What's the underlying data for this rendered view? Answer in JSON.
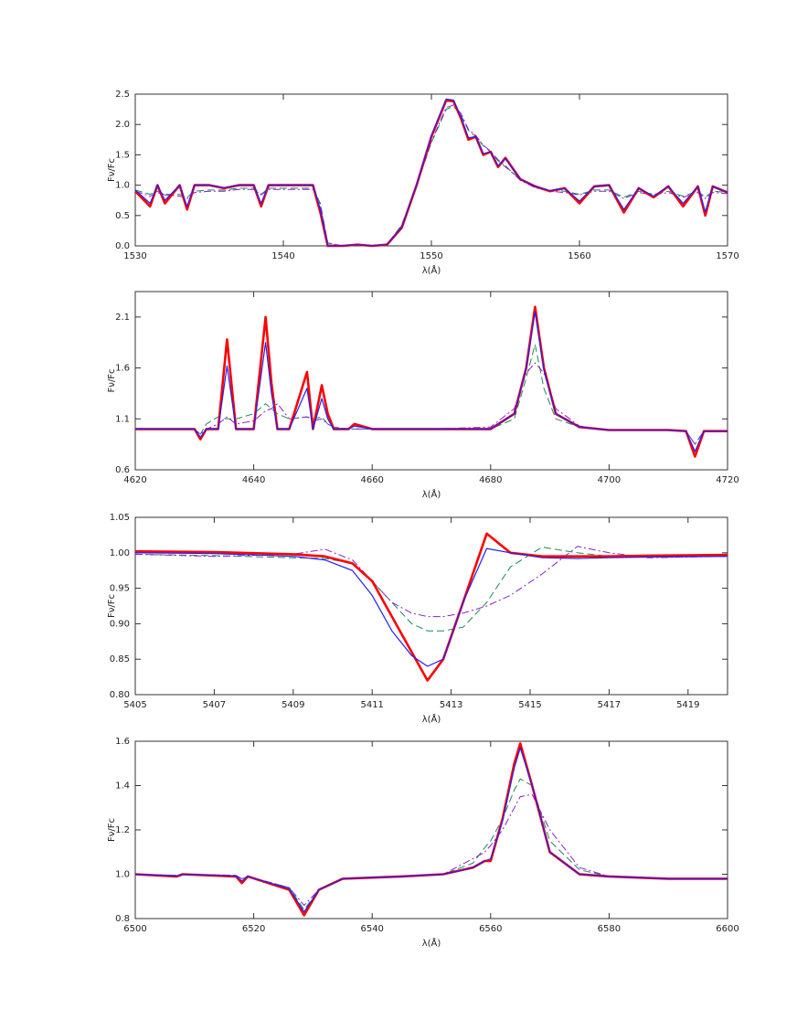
{
  "chart_data": [
    {
      "type": "line",
      "x_label": "λ(Å)",
      "y_label": "Fν/Fc",
      "xlim": [
        1530,
        1570
      ],
      "xticks": [
        1530,
        1540,
        1550,
        1560,
        1570
      ],
      "ylim": [
        0,
        2.5
      ],
      "yticks": [
        {
          "value": 0,
          "label": "0.0"
        },
        0.5,
        {
          "value": 1,
          "label": "1.0"
        },
        1.5,
        {
          "value": 2,
          "label": "2.0"
        },
        2.5
      ],
      "x": [
        1530,
        1531,
        1531.5,
        1532,
        1533,
        1533.5,
        1534,
        1535,
        1536,
        1537,
        1538,
        1538.5,
        1539,
        1540,
        1541,
        1542,
        1542.5,
        1543,
        1544,
        1545,
        1546,
        1547,
        1548,
        1549,
        1550,
        1551,
        1551.5,
        1552,
        1552.5,
        1553,
        1553.5,
        1554,
        1554.5,
        1555,
        1556,
        1557,
        1558,
        1559,
        1560,
        1561,
        1562,
        1563,
        1564,
        1565,
        1566,
        1567,
        1568,
        1568.5,
        1569,
        1570
      ],
      "series": [
        {
          "color": "#1a8a5a",
          "linestyle": "dashed",
          "width": 1,
          "values": [
            0.92,
            0.85,
            0.9,
            0.85,
            0.85,
            0.8,
            0.9,
            0.92,
            0.92,
            0.95,
            0.95,
            0.85,
            0.95,
            0.95,
            0.95,
            0.95,
            0.7,
            0.05,
            0,
            0.02,
            0,
            0.02,
            0.35,
            1,
            1.7,
            2.25,
            2.3,
            2.15,
            1.9,
            1.8,
            1.65,
            1.55,
            1.4,
            1.3,
            1.1,
            0.98,
            0.92,
            0.9,
            0.85,
            0.92,
            0.92,
            0.8,
            0.9,
            0.85,
            0.9,
            0.82,
            0.9,
            0.8,
            0.9,
            0.88
          ]
        },
        {
          "color": "#8a1fd0",
          "linestyle": "dashdot",
          "width": 1,
          "values": [
            0.9,
            0.82,
            0.88,
            0.84,
            0.82,
            0.78,
            0.88,
            0.9,
            0.9,
            0.93,
            0.93,
            0.84,
            0.93,
            0.93,
            0.93,
            0.93,
            0.68,
            0.04,
            0,
            0.02,
            0,
            0.02,
            0.33,
            0.98,
            1.72,
            2.28,
            2.32,
            2.18,
            1.92,
            1.82,
            1.66,
            1.56,
            1.42,
            1.32,
            1.08,
            0.96,
            0.9,
            0.88,
            0.84,
            0.9,
            0.9,
            0.78,
            0.88,
            0.84,
            0.88,
            0.8,
            0.88,
            0.78,
            0.88,
            0.86
          ]
        },
        {
          "color": "#ff0000",
          "linestyle": "solid",
          "width": 2.6,
          "values": [
            0.9,
            0.65,
            1,
            0.7,
            1,
            0.6,
            1,
            1,
            0.95,
            1,
            1,
            0.65,
            1,
            1,
            1,
            1,
            0.55,
            0,
            0,
            0.02,
            0,
            0.02,
            0.3,
            1,
            1.8,
            2.4,
            2.38,
            2.1,
            1.75,
            1.8,
            1.5,
            1.55,
            1.3,
            1.45,
            1.1,
            0.98,
            0.9,
            0.95,
            0.7,
            0.98,
            1,
            0.55,
            0.95,
            0.8,
            0.98,
            0.65,
            0.98,
            0.5,
            0.98,
            0.88
          ]
        },
        {
          "color": "#2020ff",
          "linestyle": "solid",
          "width": 1.2,
          "values": [
            0.92,
            0.7,
            1,
            0.75,
            1,
            0.65,
            1,
            1,
            0.96,
            1,
            1,
            0.7,
            1,
            1,
            1,
            1,
            0.6,
            0,
            0,
            0.02,
            0,
            0.02,
            0.31,
            1,
            1.82,
            2.42,
            2.4,
            2.12,
            1.78,
            1.8,
            1.52,
            1.55,
            1.32,
            1.44,
            1.1,
            0.98,
            0.91,
            0.95,
            0.74,
            0.98,
            1,
            0.6,
            0.95,
            0.82,
            0.98,
            0.7,
            0.98,
            0.56,
            0.98,
            0.88
          ]
        }
      ]
    },
    {
      "type": "line",
      "x_label": "λ(Å)",
      "y_label": "Fν/Fc",
      "xlim": [
        4620,
        4720
      ],
      "xticks": [
        4620,
        4640,
        4660,
        4680,
        4700,
        4720
      ],
      "ylim": [
        0.6,
        2.35
      ],
      "yticks": [
        0.6,
        1.1,
        1.6,
        2.1
      ],
      "x": [
        4620,
        4630,
        4631,
        4632,
        4634,
        4635.5,
        4637,
        4640,
        4642,
        4643,
        4644,
        4646,
        4649,
        4650,
        4651.5,
        4652.5,
        4653.5,
        4656,
        4657,
        4660,
        4670,
        4680,
        4684,
        4686,
        4687.5,
        4689,
        4691,
        4695,
        4700,
        4710,
        4713,
        4714.5,
        4716,
        4720
      ],
      "series": [
        {
          "color": "#1a8a5a",
          "linestyle": "dashed",
          "width": 1,
          "values": [
            1,
            1,
            0.95,
            1.05,
            1.12,
            1.1,
            1.1,
            1.15,
            1.25,
            1.2,
            1.15,
            1.1,
            1.12,
            1.1,
            1.12,
            1.05,
            1.02,
            1,
            1,
            1,
            1,
            1,
            1.1,
            1.5,
            1.83,
            1.4,
            1.1,
            1.02,
            0.99,
            0.99,
            0.98,
            0.85,
            0.98,
            0.98
          ]
        },
        {
          "color": "#8a1fd0",
          "linestyle": "dashdot",
          "width": 1,
          "values": [
            1,
            1,
            0.95,
            1,
            1.05,
            1.12,
            1.05,
            1.08,
            1.18,
            1.2,
            1.25,
            1.1,
            1.12,
            1.08,
            1.1,
            1.05,
            1.02,
            1,
            1,
            1,
            1,
            1.02,
            1.2,
            1.55,
            1.65,
            1.55,
            1.2,
            1.03,
            0.99,
            0.99,
            0.98,
            0.85,
            0.98,
            0.98
          ]
        },
        {
          "color": "#ff0000",
          "linestyle": "solid",
          "width": 2.6,
          "values": [
            1,
            1,
            0.9,
            1,
            1,
            1.88,
            1,
            1,
            2.1,
            1.45,
            1,
            1,
            1.56,
            1,
            1.43,
            1.15,
            1,
            1,
            1.05,
            1,
            1,
            1,
            1.15,
            1.6,
            2.2,
            1.6,
            1.15,
            1.02,
            0.99,
            0.99,
            0.98,
            0.73,
            0.98,
            0.98
          ]
        },
        {
          "color": "#2020ff",
          "linestyle": "solid",
          "width": 1.2,
          "values": [
            1,
            1,
            0.92,
            1,
            1,
            1.62,
            1,
            1,
            1.85,
            1.35,
            1,
            1,
            1.4,
            1,
            1.3,
            1.1,
            1,
            1,
            1.03,
            1,
            1,
            1,
            1.15,
            1.6,
            2.15,
            1.58,
            1.15,
            1.02,
            0.99,
            0.99,
            0.98,
            0.78,
            0.98,
            0.98
          ]
        }
      ]
    },
    {
      "type": "line",
      "x_label": "λ(Å)",
      "y_label": "Fν/Fc",
      "xlim": [
        5405,
        5420
      ],
      "xticks": [
        5405,
        5407,
        5409,
        5411,
        5413,
        5415,
        5417,
        5419
      ],
      "ylim": [
        0.8,
        1.05
      ],
      "yticks": [
        {
          "value": 0.8,
          "label": "0.80"
        },
        {
          "value": 0.85,
          "label": "0.85"
        },
        {
          "value": 0.9,
          "label": "0.90"
        },
        {
          "value": 0.95,
          "label": "0.95"
        },
        {
          "value": 1,
          "label": "1.00"
        },
        {
          "value": 1.05,
          "label": "1.05"
        }
      ],
      "x": [
        5405,
        5407,
        5409,
        5409.8,
        5410.5,
        5411,
        5411.5,
        5412,
        5412.4,
        5412.8,
        5413.3,
        5413.9,
        5414.5,
        5415.3,
        5416.2,
        5417,
        5418,
        5420
      ],
      "series": [
        {
          "color": "#1a8a5a",
          "linestyle": "dashed",
          "width": 1,
          "values": [
            0.998,
            0.996,
            0.993,
            0.992,
            0.985,
            0.96,
            0.93,
            0.9,
            0.89,
            0.89,
            0.895,
            0.93,
            0.98,
            1.008,
            1,
            0.995,
            0.994,
            0.995
          ]
        },
        {
          "color": "#8a1fd0",
          "linestyle": "dashdot",
          "width": 1,
          "values": [
            0.998,
            0.995,
            0.998,
            1.005,
            0.99,
            0.96,
            0.93,
            0.915,
            0.91,
            0.91,
            0.915,
            0.925,
            0.94,
            0.97,
            1.009,
            1,
            0.993,
            0.995
          ]
        },
        {
          "color": "#ff0000",
          "linestyle": "solid",
          "width": 2.6,
          "values": [
            1.002,
            1.001,
            0.998,
            0.995,
            0.985,
            0.96,
            0.91,
            0.86,
            0.82,
            0.85,
            0.93,
            1.027,
            1,
            0.995,
            0.995,
            0.995,
            0.996,
            0.997
          ]
        },
        {
          "color": "#2020ff",
          "linestyle": "solid",
          "width": 1.2,
          "values": [
            1,
            0.999,
            0.995,
            0.99,
            0.975,
            0.94,
            0.89,
            0.855,
            0.84,
            0.85,
            0.93,
            1.006,
            1,
            0.993,
            0.992,
            0.993,
            0.994,
            0.995
          ]
        }
      ]
    },
    {
      "type": "line",
      "x_label": "λ(Å)",
      "y_label": "Fν/Fc",
      "xlim": [
        6500,
        6600
      ],
      "xticks": [
        6500,
        6520,
        6540,
        6560,
        6580,
        6600
      ],
      "ylim": [
        0.8,
        1.6
      ],
      "yticks": [
        0.8,
        {
          "value": 1,
          "label": "1.0"
        },
        1.2,
        1.4,
        1.6
      ],
      "x": [
        6500,
        6507,
        6508,
        6517,
        6518,
        6519,
        6526,
        6528.5,
        6531,
        6535,
        6545,
        6552,
        6557,
        6559,
        6560,
        6562,
        6564,
        6565,
        6567,
        6570,
        6575,
        6580,
        6590,
        6600
      ],
      "series": [
        {
          "color": "#1a8a5a",
          "linestyle": "dashed",
          "width": 1,
          "values": [
            1,
            0.995,
            1,
            0.995,
            0.98,
            0.99,
            0.94,
            0.84,
            0.93,
            0.98,
            0.99,
            1,
            1.05,
            1.12,
            1.15,
            1.25,
            1.38,
            1.43,
            1.4,
            1.15,
            1.02,
            0.99,
            0.98,
            0.98
          ]
        },
        {
          "color": "#8a1fd0",
          "linestyle": "dashdot",
          "width": 1,
          "values": [
            1,
            0.995,
            1,
            0.995,
            0.98,
            0.99,
            0.94,
            0.86,
            0.93,
            0.98,
            0.99,
            1,
            1.07,
            1.1,
            1.13,
            1.2,
            1.3,
            1.35,
            1.36,
            1.2,
            1.03,
            0.99,
            0.98,
            0.98
          ]
        },
        {
          "color": "#ff0000",
          "linestyle": "solid",
          "width": 2.6,
          "values": [
            1,
            0.99,
            1,
            0.99,
            0.96,
            0.99,
            0.93,
            0.815,
            0.93,
            0.98,
            0.99,
            1,
            1.03,
            1.06,
            1.06,
            1.25,
            1.5,
            1.59,
            1.4,
            1.1,
            1,
            0.99,
            0.98,
            0.98
          ]
        },
        {
          "color": "#2020ff",
          "linestyle": "solid",
          "width": 1.2,
          "values": [
            1,
            0.992,
            1,
            0.992,
            0.97,
            0.99,
            0.935,
            0.83,
            0.93,
            0.98,
            0.99,
            1,
            1.03,
            1.06,
            1.07,
            1.24,
            1.48,
            1.57,
            1.4,
            1.1,
            1,
            0.99,
            0.98,
            0.98
          ]
        }
      ]
    }
  ]
}
